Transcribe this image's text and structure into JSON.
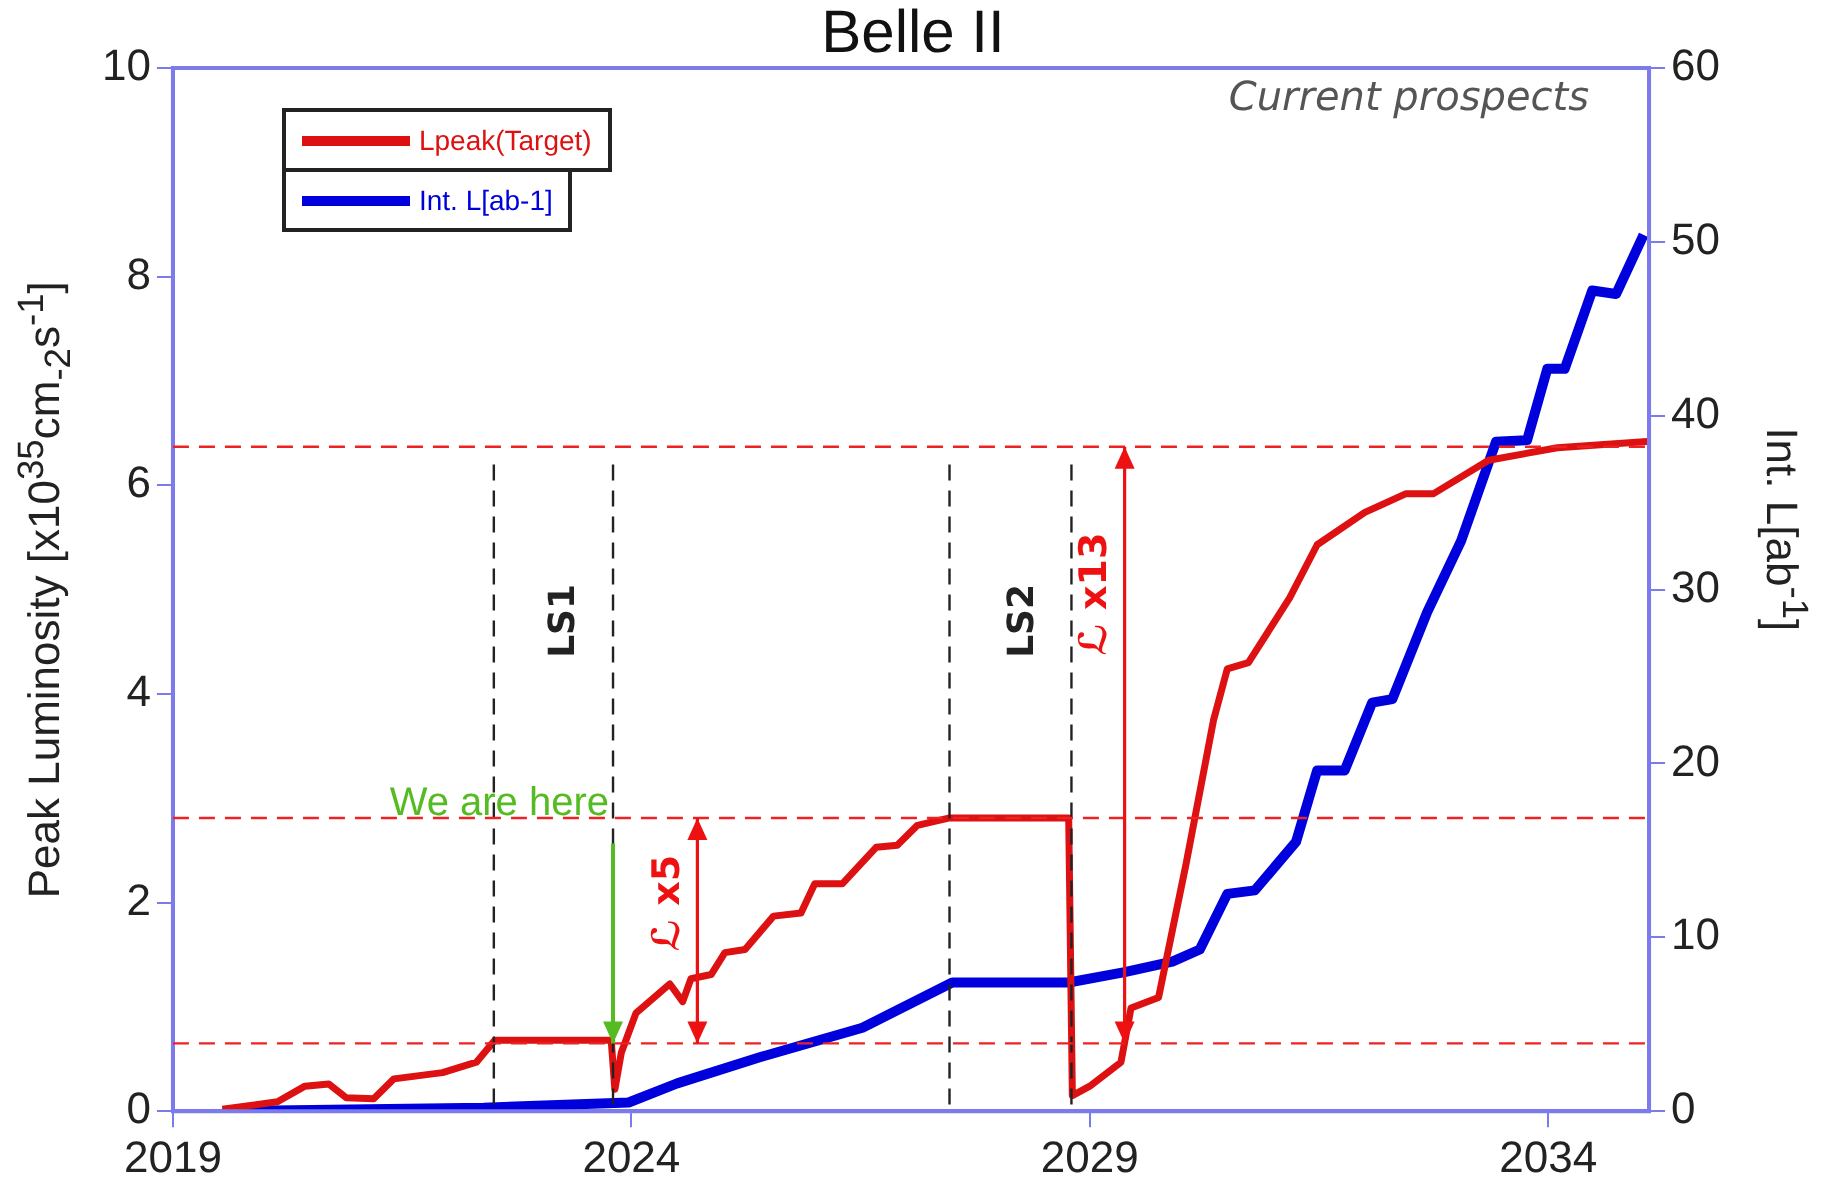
{
  "chart_data": {
    "type": "line",
    "title": "Belle II",
    "ylabel": "Peak Luminosity [x10$^{35}$cm$_{-2}$s$^{-1}$]",
    "y2label": "Int. L[ab$^{-1}$]",
    "xlim": [
      2019,
      2035.1
    ],
    "xticks": [
      2019,
      2024,
      2029,
      2034
    ],
    "ylim": [
      0,
      10
    ],
    "yticks": [
      0,
      2,
      4,
      6,
      8,
      10
    ],
    "y2lim": [
      0,
      60
    ],
    "y2ticks": [
      0,
      10,
      20,
      30,
      40,
      50,
      60
    ],
    "grid": false,
    "legend": "top left",
    "marker": "none",
    "line_style": "solid",
    "series": [
      {
        "name": "Lpeak(Target)",
        "color": "#dd1111",
        "x": [
          2019.54,
          2020.14,
          2020.44,
          2020.7,
          2020.89,
          2021.19,
          2021.41,
          2021.94,
          2022.31,
          2022.51,
          2023.78,
          2023.82,
          2023.89,
          2024.05,
          2024.42,
          2024.56,
          2024.65,
          2024.87,
          2025.02,
          2025.24,
          2025.55,
          2025.85,
          2026.0,
          2026.3,
          2026.67,
          2026.9,
          2027.12,
          2027.46,
          2028.77,
          2028.81,
          2029.0,
          2029.34,
          2029.45,
          2029.75,
          2030.05,
          2030.35,
          2030.5,
          2030.73,
          2031.18,
          2031.48,
          2032.0,
          2032.45,
          2032.75,
          2033.35,
          2034.1,
          2035.08
        ],
        "values": [
          0.02,
          0.09,
          0.24,
          0.26,
          0.13,
          0.12,
          0.31,
          0.37,
          0.47,
          0.68,
          0.68,
          0.21,
          0.56,
          0.94,
          1.22,
          1.05,
          1.27,
          1.31,
          1.52,
          1.55,
          1.87,
          1.9,
          2.18,
          2.18,
          2.53,
          2.55,
          2.74,
          2.81,
          2.81,
          0.15,
          0.24,
          0.47,
          0.99,
          1.09,
          2.37,
          3.75,
          4.24,
          4.3,
          4.92,
          5.43,
          5.74,
          5.92,
          5.92,
          6.24,
          6.36,
          6.42
        ]
      },
      {
        "name": "Int. L[ab-1]",
        "color": "#0000dd",
        "axis": "y2",
        "x": [
          2019.54,
          2022.39,
          2023.97,
          2024.5,
          2025.4,
          2026.52,
          2027.5,
          2028.77,
          2029.38,
          2029.9,
          2030.2,
          2030.5,
          2030.8,
          2031.25,
          2031.48,
          2031.78,
          2032.08,
          2032.3,
          2032.68,
          2033.05,
          2033.43,
          2033.77,
          2033.99,
          2034.18,
          2034.48,
          2034.74,
          2035.04
        ],
        "values": [
          0,
          0.2,
          0.5,
          1.6,
          3.1,
          4.8,
          7.4,
          7.4,
          8,
          8.6,
          9.3,
          12.5,
          12.7,
          15.5,
          19.6,
          19.6,
          23.5,
          23.7,
          28.7,
          32.8,
          38.5,
          38.6,
          42.7,
          42.7,
          47.2,
          47,
          50.4
        ]
      }
    ],
    "ref_lines": [
      {
        "axis": "x",
        "value": 2022.5,
        "color": "#222222",
        "line_style": "dashed"
      },
      {
        "axis": "x",
        "value": 2023.8,
        "color": "#222222",
        "line_style": "dashed",
        "label": "LS1"
      },
      {
        "axis": "x",
        "value": 2027.47,
        "color": "#222222",
        "line_style": "dashed"
      },
      {
        "axis": "x",
        "value": 2028.8,
        "color": "#222222",
        "line_style": "dashed",
        "label": "LS2"
      },
      {
        "axis": "y",
        "value": 2.81,
        "color": "#ee2222",
        "line_style": "dashed"
      },
      {
        "axis": "y",
        "value": 0.65,
        "color": "#ee2222",
        "line_style": "dashed"
      },
      {
        "axis": "y",
        "value": 6.37,
        "color": "#ee2222",
        "line_style": "dashed"
      }
    ],
    "annotations": [
      {
        "text": "We are here",
        "x": 2023.8,
        "y": 0.65
      },
      {
        "text": "ℒ x5",
        "x": 2024.72,
        "y": 2.81
      },
      {
        "text": "ℒ x13",
        "x": 2029.38,
        "y": 6.37
      },
      "Current prospects"
    ]
  }
}
